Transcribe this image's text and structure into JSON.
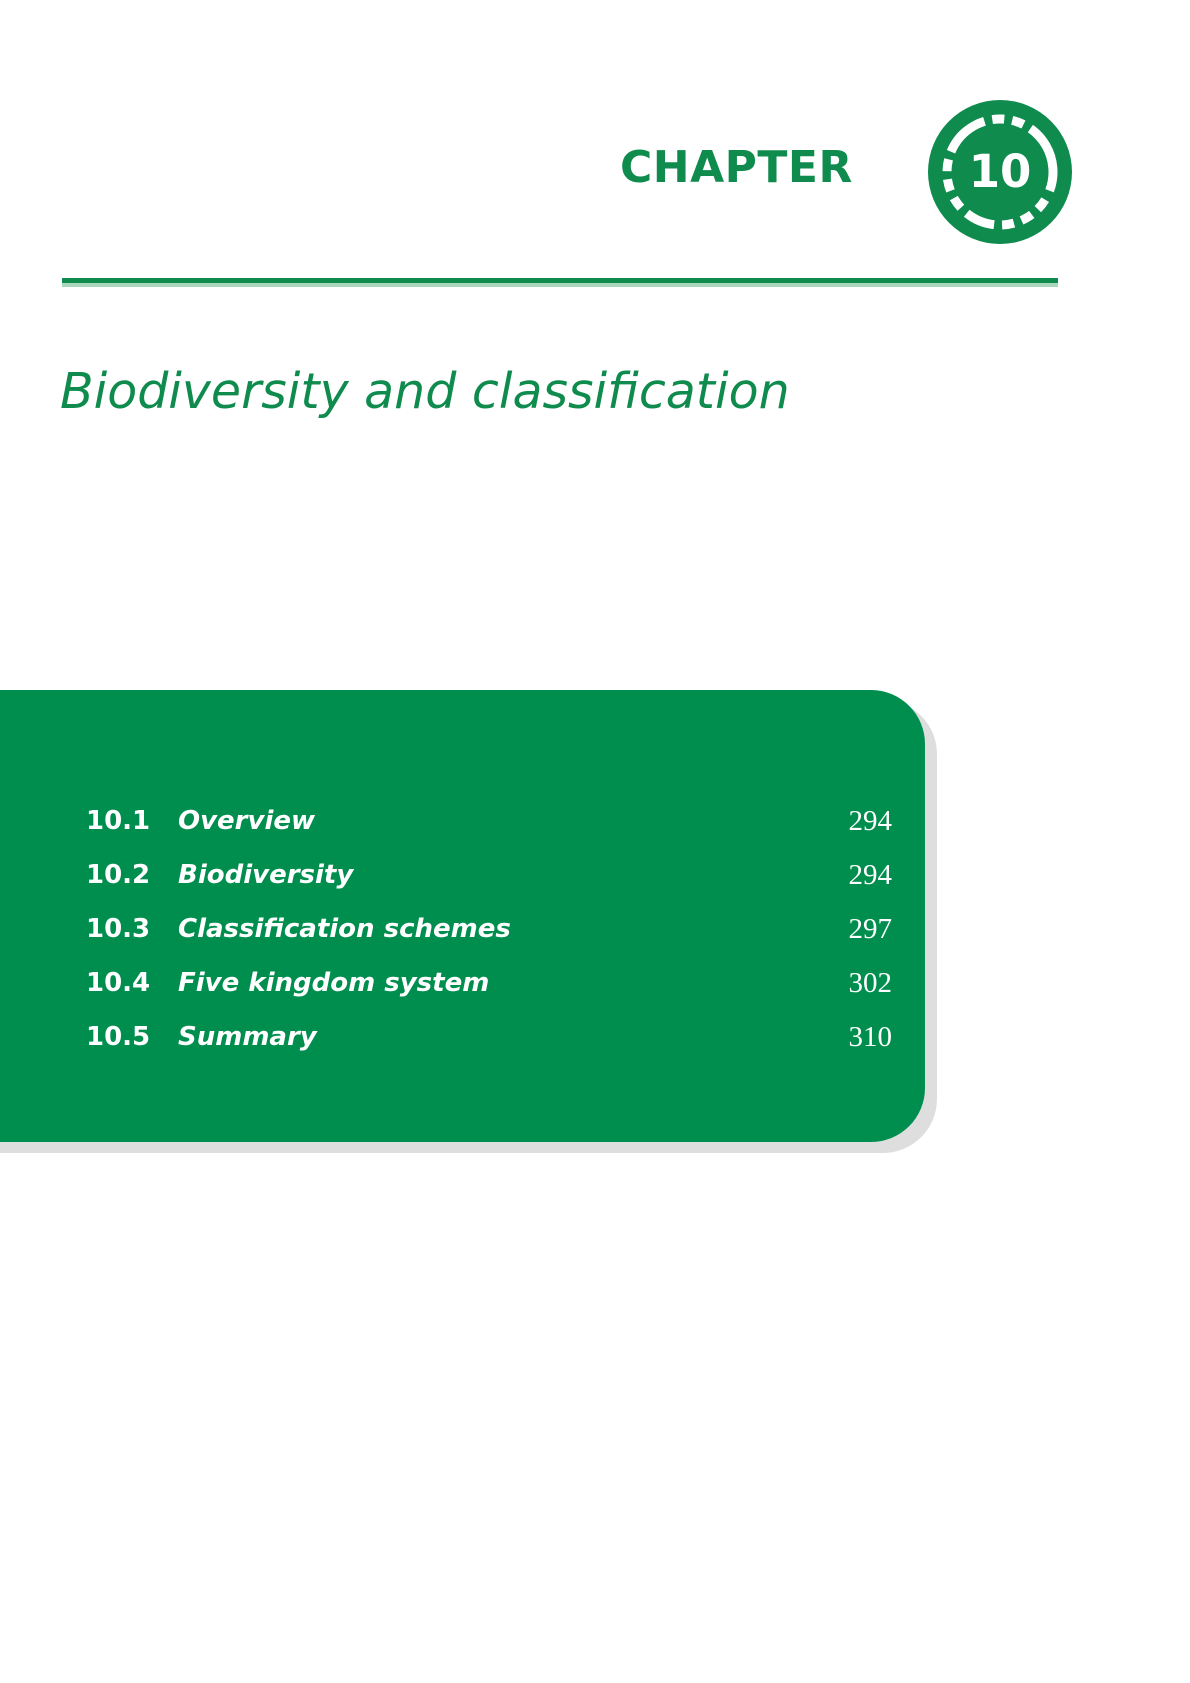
{
  "header": {
    "chapter_word": "CHAPTER",
    "chapter_number": "10"
  },
  "title": "Biodiversity and classification",
  "toc": {
    "items": [
      {
        "number": "10.1",
        "label": "Overview",
        "page": "294"
      },
      {
        "number": "10.2",
        "label": "Biodiversity",
        "page": "294"
      },
      {
        "number": "10.3",
        "label": "Classification schemes",
        "page": "297"
      },
      {
        "number": "10.4",
        "label": "Five kingdom system",
        "page": "302"
      },
      {
        "number": "10.5",
        "label": "Summary",
        "page": "310"
      }
    ]
  },
  "colors": {
    "brand_green": "#0e8b4d",
    "panel_green": "#008e4f",
    "text_on_panel": "#ffffff"
  }
}
